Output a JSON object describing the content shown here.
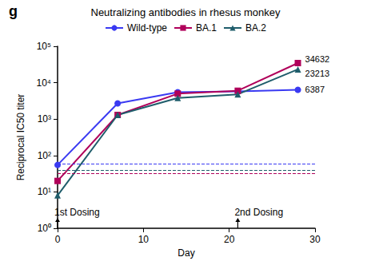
{
  "chart_data": {
    "type": "line",
    "panel_label": "g",
    "title": "Neutralizing antibodies in rhesus monkey",
    "x_label": "Day",
    "y_label": "Reciprocal IC50 titer",
    "log": "y",
    "grid": false,
    "legend": "top",
    "x": [
      0,
      7,
      14,
      21,
      28
    ],
    "xlim": [
      0,
      30
    ],
    "xticks": [
      0,
      10,
      20,
      30
    ],
    "ylim": [
      1,
      100000
    ],
    "yticks": [
      {
        "value": 1,
        "label": "10⁰"
      },
      {
        "value": 10,
        "label": "10¹"
      },
      {
        "value": 100,
        "label": "10²"
      },
      {
        "value": 1000,
        "label": "10³"
      },
      {
        "value": 10000,
        "label": "10⁴"
      },
      {
        "value": 100000,
        "label": "10⁵"
      }
    ],
    "series": [
      {
        "name": "Wild-type",
        "color": "#3a3af2",
        "marker": "circle",
        "values": [
          55,
          2700,
          5500,
          5800,
          6387
        ],
        "dashed_line": 60
      },
      {
        "name": "BA.1",
        "color": "#b0005a",
        "marker": "square",
        "values": [
          20,
          1300,
          5000,
          6000,
          34632
        ],
        "dashed_line": 33
      },
      {
        "name": "BA.2",
        "color": "#1f5d6b",
        "marker": "triangle",
        "values": [
          8,
          1300,
          3800,
          4800,
          23213
        ],
        "dashed_line": 40
      }
    ],
    "annotations": [
      {
        "text": "1st Dosing",
        "x": 0
      },
      {
        "text": "2nd Dosing",
        "x": 21
      }
    ]
  }
}
